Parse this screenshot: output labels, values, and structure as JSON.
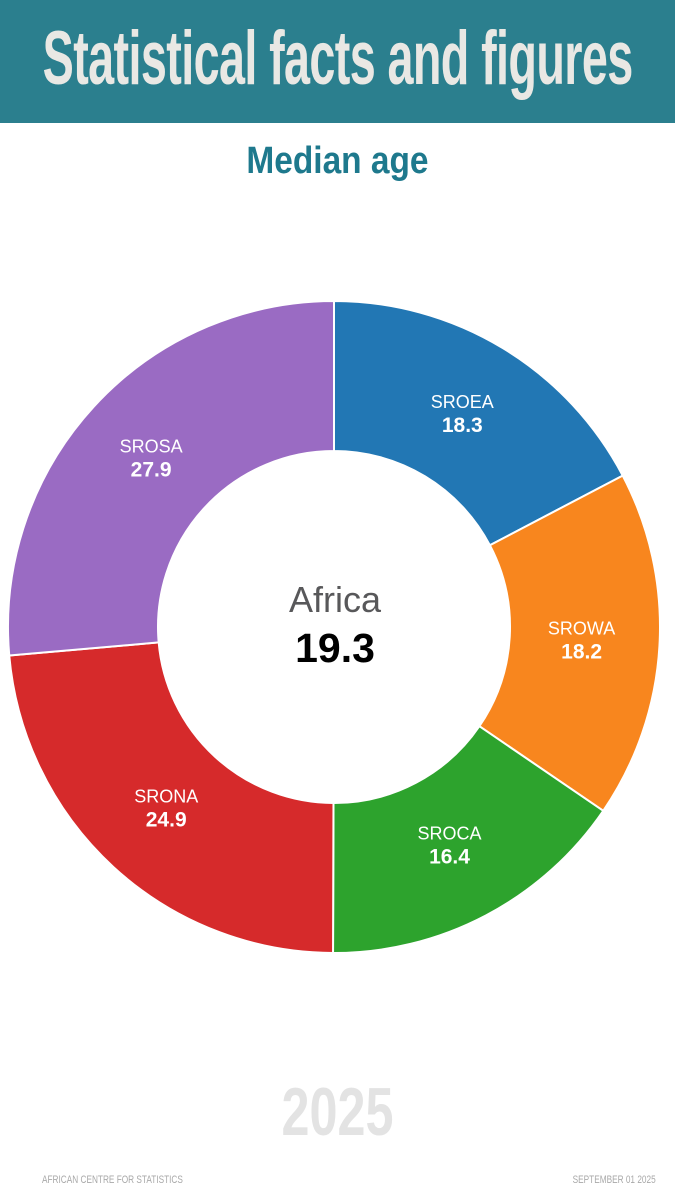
{
  "header": {
    "title": "Statistical facts and figures",
    "bg_color": "#2b7f8e",
    "text_color": "#e9e8e4"
  },
  "subtitle": {
    "text": "Median age",
    "color": "#1e798d"
  },
  "chart_data": {
    "type": "pie",
    "variant": "donut",
    "title": "Median age",
    "start_angle_deg": 0,
    "direction": "clockwise",
    "inner_radius_ratio": 0.54,
    "label_color": "#ffffff",
    "center": {
      "label": "Africa",
      "value": "19.3",
      "label_color": "#58585a",
      "value_color": "#000000"
    },
    "series": [
      {
        "name": "SROEA",
        "value": 18.3,
        "color": "#2277b4"
      },
      {
        "name": "SROWA",
        "value": 18.2,
        "color": "#f8861e"
      },
      {
        "name": "SROCA",
        "value": 16.4,
        "color": "#2da32d"
      },
      {
        "name": "SRONA",
        "value": 24.9,
        "color": "#d62a2b"
      },
      {
        "name": "SROSA",
        "value": 27.9,
        "color": "#9a6bc3"
      }
    ]
  },
  "watermark": {
    "year": "2025",
    "color": "#e3e3e3"
  },
  "footer": {
    "left": "AFRICAN CENTRE FOR STATISTICS",
    "right": "SEPTEMBER 01 2025",
    "color": "#a9a9a9"
  }
}
